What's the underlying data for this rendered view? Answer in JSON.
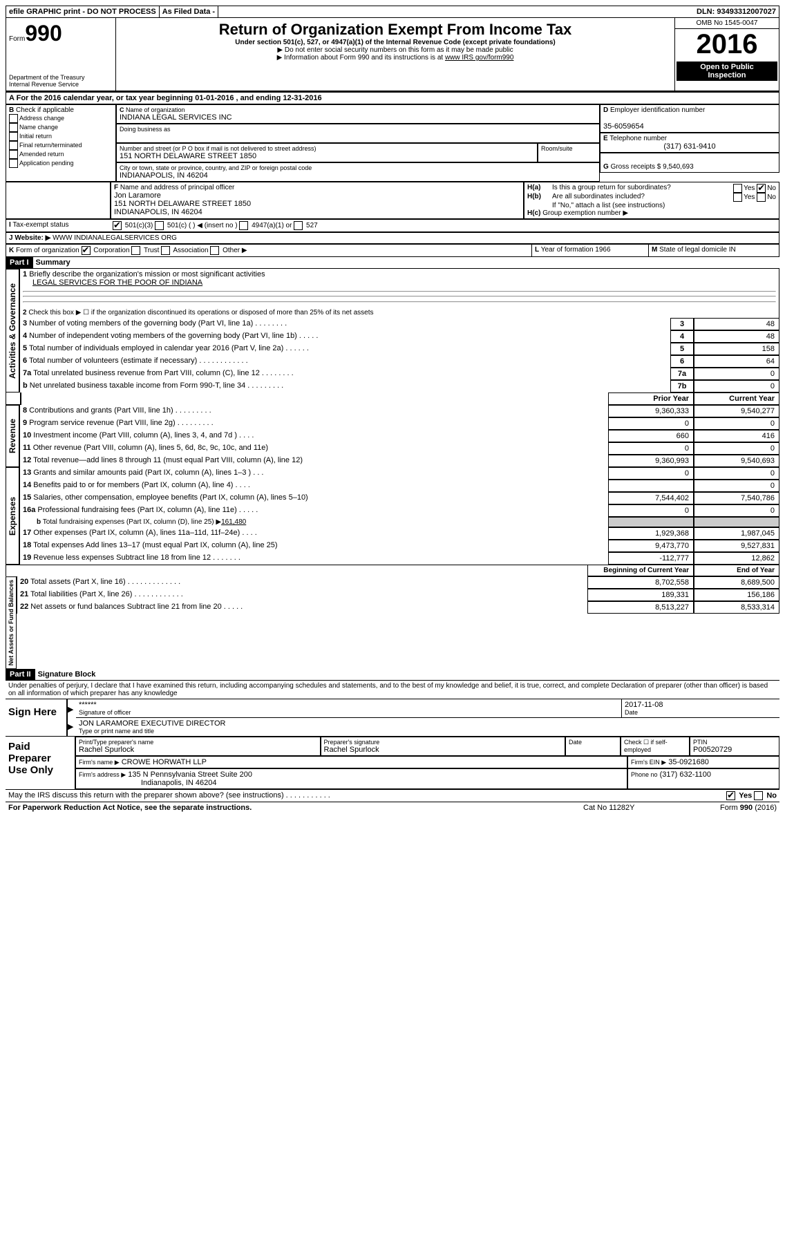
{
  "topbar": {
    "efile": "efile GRAPHIC print - DO NOT PROCESS",
    "asfiled": "As Filed Data -",
    "dln_label": "DLN:",
    "dln": "93493312007027"
  },
  "header": {
    "form_label": "Form",
    "form_no": "990",
    "dept1": "Department of the Treasury",
    "dept2": "Internal Revenue Service",
    "title": "Return of Organization Exempt From Income Tax",
    "subtitle": "Under section 501(c), 527, or 4947(a)(1) of the Internal Revenue Code (except private foundations)",
    "note1": "▶ Do not enter social security numbers on this form as it may be made public",
    "note2_prefix": "▶ Information about Form 990 and its instructions is at ",
    "note2_link": "www IRS gov/form990",
    "omb": "OMB No 1545-0047",
    "year": "2016",
    "open1": "Open to Public",
    "open2": "Inspection"
  },
  "lineA": "For the 2016 calendar year, or tax year beginning 01-01-2016   , and ending 12-31-2016",
  "boxB": {
    "label": "Check if applicable",
    "opts": [
      "Address change",
      "Name change",
      "Initial return",
      "Final return/terminated",
      "Amended return",
      "Application pending"
    ]
  },
  "boxC": {
    "label": "Name of organization",
    "name": "INDIANA LEGAL SERVICES INC",
    "dba_label": "Doing business as",
    "addr_label": "Number and street (or P O  box if mail is not delivered to street address)",
    "room_label": "Room/suite",
    "addr": "151 NORTH DELAWARE STREET 1850",
    "city_label": "City or town, state or province, country, and ZIP or foreign postal code",
    "city": "INDIANAPOLIS, IN  46204"
  },
  "boxD": {
    "label": "Employer identification number",
    "val": "35-6059654"
  },
  "boxE": {
    "label": "Telephone number",
    "val": "(317) 631-9410"
  },
  "boxG": {
    "label": "Gross receipts $",
    "val": "9,540,693"
  },
  "boxF": {
    "label": "Name and address of principal officer",
    "name": "Jon Laramore",
    "addr1": "151 NORTH DELAWARE STREET 1850",
    "addr2": "INDIANAPOLIS, IN  46204"
  },
  "boxH": {
    "a": "Is this a group return for subordinates?",
    "b": "Are all subordinates included?",
    "ifno": "If \"No,\" attach a list (see instructions)",
    "c": "Group exemption number ▶"
  },
  "boxI": {
    "label": "Tax-exempt status",
    "o1": "501(c)(3)",
    "o2": "501(c) (  ) ◀ (insert no )",
    "o3": "4947(a)(1) or",
    "o4": "527"
  },
  "boxJ": {
    "label": "Website: ▶",
    "val": "WWW INDIANALEGALSERVICES ORG"
  },
  "boxK": {
    "label": "Form of organization",
    "opts": [
      "Corporation",
      "Trust",
      "Association",
      "Other ▶"
    ]
  },
  "boxL": {
    "label": "Year of formation",
    "val": "1966"
  },
  "boxM": {
    "label": "State of legal domicile",
    "val": "IN"
  },
  "part1": {
    "title": "Part I",
    "name": "Summary",
    "l1_label": "Briefly describe the organization's mission or most significant activities",
    "l1_val": "LEGAL SERVICES FOR THE POOR OF INDIANA",
    "l2": "Check this box ▶ ☐ if the organization discontinued its operations or disposed of more than 25% of its net assets",
    "sections": {
      "activities": "Activities & Governance",
      "revenue": "Revenue",
      "expenses": "Expenses",
      "netassets": "Net Assets or Fund Balances"
    },
    "col_prior": "Prior Year",
    "col_current": "Current Year",
    "col_begin": "Beginning of Current Year",
    "col_end": "End of Year",
    "rows_top": [
      {
        "n": "3",
        "d": "Number of voting members of the governing body (Part VI, line 1a)  .   .   .   .   .   .   .   .",
        "ln": "3",
        "v": "48"
      },
      {
        "n": "4",
        "d": "Number of independent voting members of the governing body (Part VI, line 1b)  .   .   .   .   .",
        "ln": "4",
        "v": "48"
      },
      {
        "n": "5",
        "d": "Total number of individuals employed in calendar year 2016 (Part V, line 2a)  .   .   .   .   .   .",
        "ln": "5",
        "v": "158"
      },
      {
        "n": "6",
        "d": "Total number of volunteers (estimate if necessary)  .   .   .   .   .   .   .   .   .   .   .   .",
        "ln": "6",
        "v": "64"
      },
      {
        "n": "7a",
        "d": "Total unrelated business revenue from Part VIII, column (C), line 12  .   .   .   .   .   .   .   .",
        "ln": "7a",
        "v": "0"
      },
      {
        "n": "b",
        "d": "Net unrelated business taxable income from Form 990-T, line 34  .   .   .   .   .   .   .   .   .",
        "ln": "7b",
        "v": "0"
      }
    ],
    "rows_rev": [
      {
        "n": "8",
        "d": "Contributions and grants (Part VIII, line 1h)  .   .   .   .   .   .   .   .   .",
        "p": "9,360,333",
        "c": "9,540,277"
      },
      {
        "n": "9",
        "d": "Program service revenue (Part VIII, line 2g)  .   .   .   .   .   .   .   .   .",
        "p": "0",
        "c": "0"
      },
      {
        "n": "10",
        "d": "Investment income (Part VIII, column (A), lines 3, 4, and 7d )  .   .   .   .",
        "p": "660",
        "c": "416"
      },
      {
        "n": "11",
        "d": "Other revenue (Part VIII, column (A), lines 5, 6d, 8c, 9c, 10c, and 11e)",
        "p": "0",
        "c": "0"
      },
      {
        "n": "12",
        "d": "Total revenue—add lines 8 through 11 (must equal Part VIII, column (A), line 12)",
        "p": "9,360,993",
        "c": "9,540,693"
      }
    ],
    "rows_exp": [
      {
        "n": "13",
        "d": "Grants and similar amounts paid (Part IX, column (A), lines 1–3 )  .   .   .",
        "p": "0",
        "c": "0"
      },
      {
        "n": "14",
        "d": "Benefits paid to or for members (Part IX, column (A), line 4)  .   .   .   .",
        "p": "",
        "c": "0"
      },
      {
        "n": "15",
        "d": "Salaries, other compensation, employee benefits (Part IX, column (A), lines 5–10)",
        "p": "7,544,402",
        "c": "7,540,786"
      },
      {
        "n": "16a",
        "d": "Professional fundraising fees (Part IX, column (A), line 11e)  .   .   .   .   .",
        "p": "0",
        "c": "0"
      }
    ],
    "l16b": "Total fundraising expenses (Part IX, column (D), line 25) ▶",
    "l16b_val": "161,480",
    "rows_exp2": [
      {
        "n": "17",
        "d": "Other expenses (Part IX, column (A), lines 11a–11d, 11f–24e)  .   .   .   .",
        "p": "1,929,368",
        "c": "1,987,045"
      },
      {
        "n": "18",
        "d": "Total expenses  Add lines 13–17 (must equal Part IX, column (A), line 25)",
        "p": "9,473,770",
        "c": "9,527,831"
      },
      {
        "n": "19",
        "d": "Revenue less expenses  Subtract line 18 from line 12  .   .   .   .   .   .   .",
        "p": "-112,777",
        "c": "12,862"
      }
    ],
    "rows_net": [
      {
        "n": "20",
        "d": "Total assets (Part X, line 16)  .   .   .   .   .   .   .   .   .   .   .   .   .",
        "p": "8,702,558",
        "c": "8,689,500"
      },
      {
        "n": "21",
        "d": "Total liabilities (Part X, line 26)  .   .   .   .   .   .   .   .   .   .   .   .",
        "p": "189,331",
        "c": "156,186"
      },
      {
        "n": "22",
        "d": "Net assets or fund balances  Subtract line 21 from line 20  .   .   .   .   .",
        "p": "8,513,227",
        "c": "8,533,314"
      }
    ]
  },
  "part2": {
    "title": "Part II",
    "name": "Signature Block",
    "perjury": "Under penalties of perjury, I declare that I have examined this return, including accompanying schedules and statements, and to the best of my knowledge and belief, it is true, correct, and complete  Declaration of preparer (other than officer) is based on all information of which preparer has any knowledge",
    "sign_here": "Sign Here",
    "sig_stars": "******",
    "sig_label": "Signature of officer",
    "date": "2017-11-08",
    "date_label": "Date",
    "name_line": "JON LARAMORE EXECUTIVE DIRECTOR",
    "name_label": "Type or print name and title",
    "paid": "Paid Preparer Use Only",
    "prep_name_label": "Print/Type preparer's name",
    "prep_name": "Rachel Spurlock",
    "prep_sig_label": "Preparer's signature",
    "prep_sig": "Rachel Spurlock",
    "prep_date_label": "Date",
    "check_self": "Check ☐ if self-employed",
    "ptin_label": "PTIN",
    "ptin": "P00520729",
    "firm_name_label": "Firm's name    ▶",
    "firm_name": "CROWE HORWATH LLP",
    "firm_ein_label": "Firm's EIN ▶",
    "firm_ein": "35-0921680",
    "firm_addr_label": "Firm's address ▶",
    "firm_addr1": "135 N Pennsylvania Street Suite 200",
    "firm_addr2": "Indianapolis, IN  46204",
    "phone_label": "Phone no",
    "phone": "(317) 632-1100"
  },
  "footer": {
    "discuss": "May the IRS discuss this return with the preparer shown above? (see instructions)  .   .   .   .   .   .   .   .   .   .   .",
    "yes": "Yes",
    "no": "No",
    "paperwork": "For Paperwork Reduction Act Notice, see the separate instructions.",
    "catno": "Cat No  11282Y",
    "formno": "Form 990 (2016)"
  }
}
